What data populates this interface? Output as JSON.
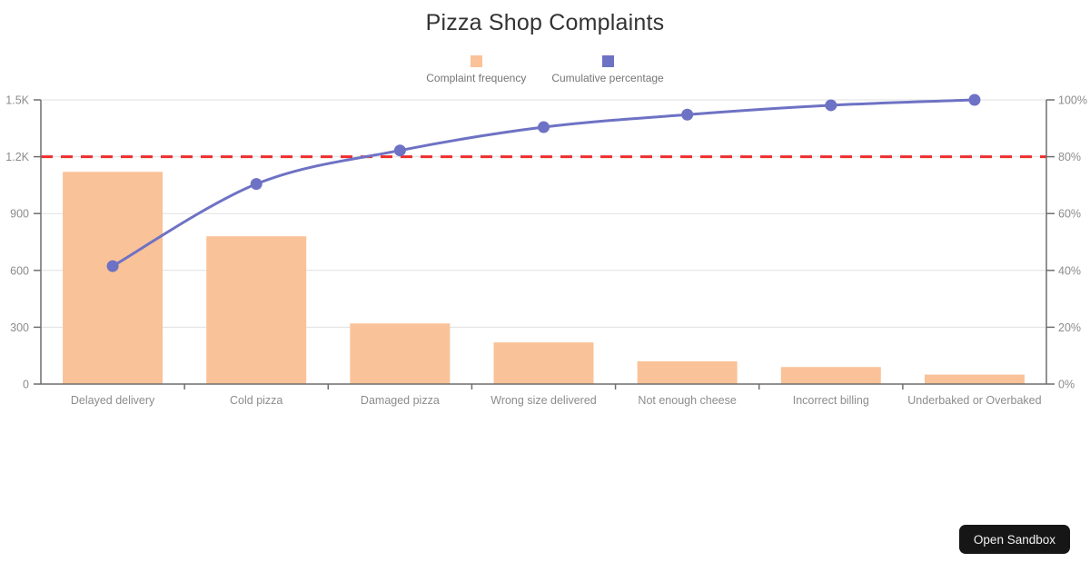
{
  "title": "Pizza Shop Complaints",
  "legend": {
    "items": [
      {
        "label": "Complaint frequency",
        "color": "#fac298"
      },
      {
        "label": "Cumulative percentage",
        "color": "#6e72c4"
      }
    ]
  },
  "button": {
    "label": "Open Sandbox"
  },
  "colors": {
    "bar": "#fac298",
    "line": "#6e72c4",
    "threshold": "#ed2e2e",
    "grid": "#e0e0e0",
    "axis": "#6e6e6e",
    "tick_label": "#8c8c8c",
    "title_text": "#333333",
    "legend_label": "#757575",
    "button_bg": "#161616",
    "button_text": "#f2f2f2"
  },
  "chart_data": {
    "type": "bar",
    "subtype": "pareto (bars + cumulative percentage line)",
    "title": "Pizza Shop Complaints",
    "categories": [
      "Delayed delivery",
      "Cold pizza",
      "Damaged pizza",
      "Wrong size delivered",
      "Not enough cheese",
      "Incorrect billing",
      "Underbaked or Overbaked"
    ],
    "series": [
      {
        "name": "Complaint frequency",
        "type": "bar",
        "axis": "left",
        "values": [
          1120,
          780,
          320,
          220,
          120,
          90,
          50
        ]
      },
      {
        "name": "Cumulative percentage",
        "type": "line",
        "axis": "right",
        "values": [
          41.5,
          70.4,
          82.2,
          90.4,
          94.8,
          98.1,
          100
        ]
      }
    ],
    "threshold_line": {
      "value": 80,
      "axis": "right",
      "style": "dashed",
      "color": "#ed2e2e"
    },
    "y_axis_left": {
      "tick_labels": [
        "0",
        "300",
        "600",
        "900",
        "1.2K",
        "1.5K"
      ],
      "tick_values": [
        0,
        300,
        600,
        900,
        1200,
        1500
      ],
      "min": 0,
      "max": 1500
    },
    "y_axis_right": {
      "tick_labels": [
        "0%",
        "20%",
        "40%",
        "60%",
        "80%",
        "100%"
      ],
      "tick_values": [
        0,
        20,
        40,
        60,
        80,
        100
      ],
      "min": 0,
      "max": 100
    },
    "grid": "horizontal gridlines on",
    "legend_position": "top center"
  }
}
